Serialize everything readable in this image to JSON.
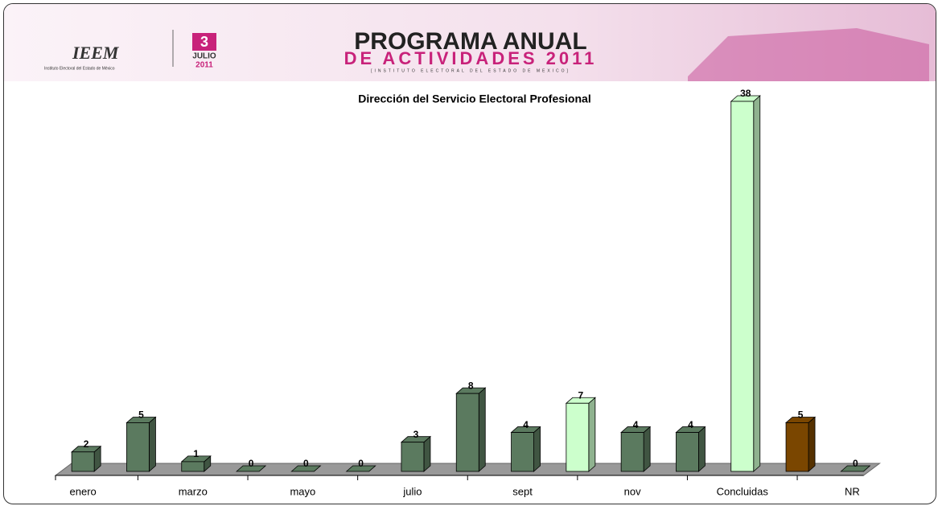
{
  "header": {
    "logo": "IEEM",
    "logo_subtitle": "Instituto Electoral del Estado de México",
    "day": "3",
    "month": "JULIO",
    "year": "2011",
    "title": "PROGRAMA ANUAL",
    "subtitle": "DE ACTIVIDADES 2011",
    "caption": "[INSTITUTO ELECTORAL DEL ESTADO DE MEXICO]"
  },
  "chart_data": {
    "type": "bar3d",
    "title": "Dirección del Servicio Electoral Profesional",
    "categories": [
      "enero",
      null,
      "marzo",
      null,
      "mayo",
      null,
      "julio",
      null,
      "sept",
      null,
      "nov",
      null,
      "Concluidas",
      null,
      "NR"
    ],
    "values": [
      2,
      5,
      1,
      0,
      0,
      0,
      3,
      8,
      4,
      7,
      4,
      4,
      38,
      5,
      0
    ],
    "colors": [
      "#5b7a5f",
      "#5b7a5f",
      "#5b7a5f",
      "#5b7a5f",
      "#5b7a5f",
      "#5b7a5f",
      "#5b7a5f",
      "#5b7a5f",
      "#5b7a5f",
      "#ccffcc",
      "#5b7a5f",
      "#5b7a5f",
      "#ccffcc",
      "#7a4600",
      "#5b7a5f"
    ],
    "ylim": [
      0,
      38
    ]
  }
}
